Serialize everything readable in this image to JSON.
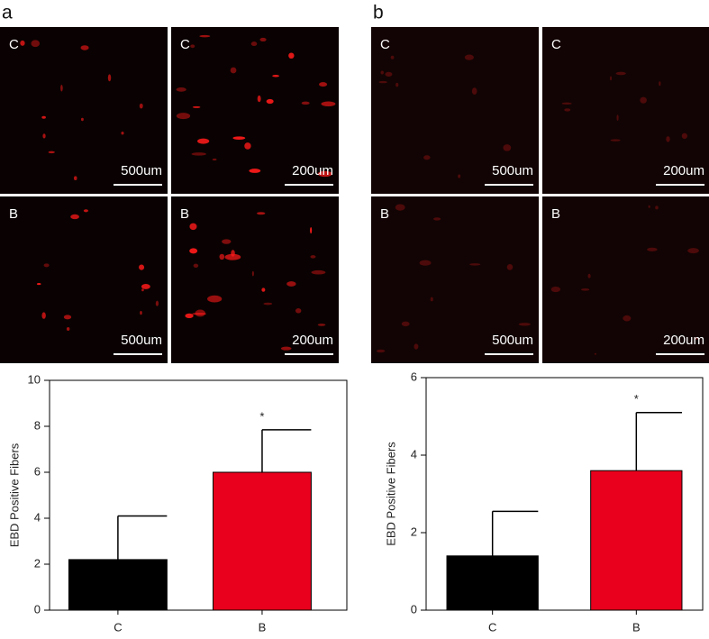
{
  "panels": [
    {
      "label": "a",
      "images": [
        {
          "label": "C",
          "scale": "500um"
        },
        {
          "label": "C",
          "scale": "200um"
        },
        {
          "label": "B",
          "scale": "500um"
        },
        {
          "label": "B",
          "scale": "200um"
        }
      ]
    },
    {
      "label": "b",
      "images": [
        {
          "label": "C",
          "scale": "500um"
        },
        {
          "label": "C",
          "scale": "200um"
        },
        {
          "label": "B",
          "scale": "500um"
        },
        {
          "label": "B",
          "scale": "200um"
        }
      ]
    }
  ],
  "chart_data": [
    {
      "type": "bar",
      "ylabel": "EBD Positive Fibers",
      "categories": [
        "C",
        "B"
      ],
      "values": [
        2.2,
        6.0
      ],
      "errors": [
        1.9,
        1.85
      ],
      "colors": [
        "#000000",
        "#e8001c"
      ],
      "ylim": [
        0,
        10
      ],
      "yticks": [
        0,
        2,
        4,
        6,
        8,
        10
      ],
      "annotation": "*"
    },
    {
      "type": "bar",
      "ylabel": "EBD Positive Fibers",
      "categories": [
        "C",
        "B"
      ],
      "values": [
        1.4,
        3.6
      ],
      "errors": [
        1.15,
        1.5
      ],
      "colors": [
        "#000000",
        "#e8001c"
      ],
      "ylim": [
        0,
        6
      ],
      "yticks": [
        0,
        2,
        4,
        6
      ],
      "annotation": "*"
    }
  ]
}
